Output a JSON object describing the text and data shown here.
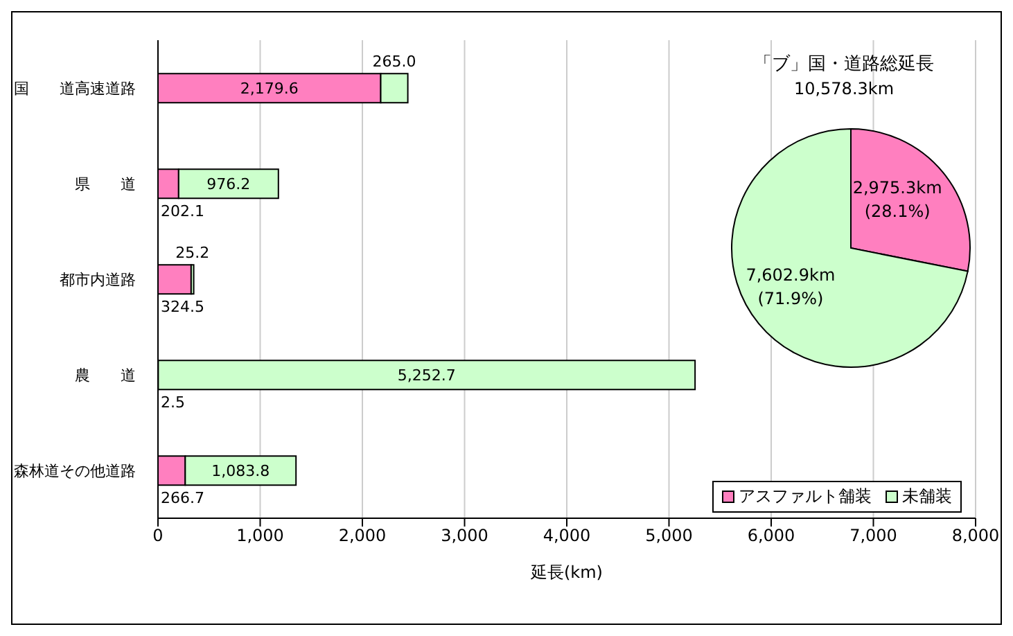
{
  "chart_data": [
    {
      "type": "bar",
      "orientation": "horizontal",
      "stacked": true,
      "xlabel": "延長(km)",
      "categories": [
        "国　　道高速道路",
        "県　　道",
        "都市内道路",
        "農　　道",
        "森林道その他道路"
      ],
      "series": [
        {
          "name": "アスファルト舗装",
          "color": "#ff7fbf",
          "values": [
            2179.6,
            202.1,
            324.5,
            2.5,
            266.7
          ],
          "value_labels": [
            "2,179.6",
            "202.1",
            "324.5",
            "2.5",
            "266.7"
          ]
        },
        {
          "name": "未舗装",
          "color": "#ccffcc",
          "values": [
            265.0,
            976.2,
            25.2,
            5252.7,
            1083.8
          ],
          "value_labels": [
            "265.0",
            "976.2",
            "25.2",
            "5,252.7",
            "1,083.8"
          ]
        }
      ],
      "xlim": [
        0,
        8000
      ],
      "xticks": [
        {
          "value": 0,
          "label": "0"
        },
        {
          "value": 1000,
          "label": "1,000"
        },
        {
          "value": 2000,
          "label": "2,000"
        },
        {
          "value": 3000,
          "label": "3,000"
        },
        {
          "value": 4000,
          "label": "4,000"
        },
        {
          "value": 5000,
          "label": "5,000"
        },
        {
          "value": 6000,
          "label": "6,000"
        },
        {
          "value": 7000,
          "label": "7,000"
        },
        {
          "value": 8000,
          "label": "8,000"
        }
      ],
      "grid": "x",
      "legend": "bottom right"
    },
    {
      "type": "pie",
      "title": "「ブ」国・道路総延長",
      "subtitle": "10,578.3km",
      "categories": [
        null,
        null
      ],
      "values": [
        2975.3,
        7602.9
      ],
      "colors": [
        "#ff7fbf",
        "#ccffcc"
      ],
      "value_labels": [
        "2,975.3km\n(28.1%)",
        "7,602.9km\n(71.9%)"
      ],
      "legend": false
    }
  ]
}
